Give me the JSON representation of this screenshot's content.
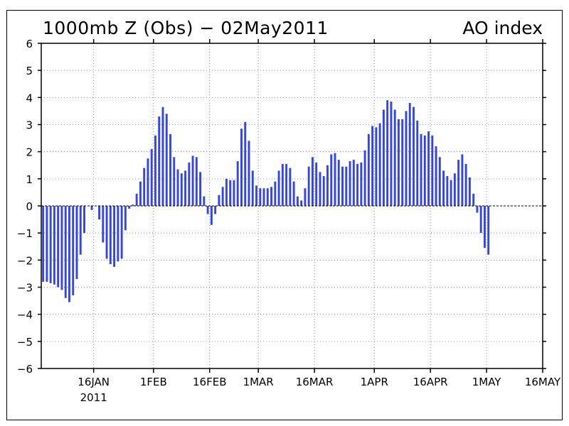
{
  "chart_data": {
    "type": "bar",
    "title": "1000mb Z (Obs) − 02May2011",
    "subtitle": "AO index",
    "xlabel": "",
    "ylabel": "",
    "ylim": [
      -6,
      6
    ],
    "yticks": [
      6,
      5,
      4,
      3,
      2,
      1,
      0,
      -1,
      -2,
      -3,
      -4,
      -5,
      -6
    ],
    "ytick_labels": [
      "6",
      "5",
      "4",
      "3",
      "2",
      "1",
      "0",
      "−1",
      "−2",
      "−3",
      "−4",
      "−5",
      "−6"
    ],
    "xlim": [
      "2011-01-02",
      "2011-05-16"
    ],
    "xticks": [
      {
        "date": "2011-01-16",
        "label": "16JAN"
      },
      {
        "date": "2011-02-01",
        "label": "1FEB"
      },
      {
        "date": "2011-02-16",
        "label": "16FEB"
      },
      {
        "date": "2011-03-01",
        "label": "1MAR"
      },
      {
        "date": "2011-03-16",
        "label": "16MAR"
      },
      {
        "date": "2011-04-01",
        "label": "1APR"
      },
      {
        "date": "2011-04-16",
        "label": "16APR"
      },
      {
        "date": "2011-05-01",
        "label": "1MAY"
      },
      {
        "date": "2011-05-16",
        "label": "16MAY"
      }
    ],
    "year_label": "2011",
    "grid": true,
    "colors": {
      "bar": "#3344ee",
      "axis": "#000000",
      "grid": "#999999"
    },
    "series": [
      {
        "x_start": "2011-01-02",
        "values": [
          -2.8,
          -2.8,
          -2.85,
          -2.9,
          -3.0,
          -3.1,
          -3.4,
          -3.55,
          -3.3,
          -2.7,
          -1.8,
          -1.0,
          0.0,
          -0.15,
          0.0,
          -0.5,
          -1.35,
          -1.95,
          -2.15,
          -2.25,
          -2.05,
          -1.95,
          -0.9,
          -0.1,
          0.05,
          0.45,
          0.9,
          1.4,
          1.75,
          2.1,
          2.6,
          3.3,
          3.65,
          3.4,
          2.65,
          1.8,
          1.35,
          1.2,
          1.3,
          1.6,
          1.85,
          1.8,
          1.25,
          0.35,
          -0.3,
          -0.7,
          -0.3,
          0.4,
          0.7,
          1.0,
          0.95,
          0.95,
          1.65,
          2.85,
          3.1,
          2.4,
          1.3,
          0.75,
          0.65,
          0.65,
          0.65,
          0.7,
          0.9,
          1.3,
          1.55,
          1.55,
          1.4,
          0.9,
          0.35,
          0.2,
          0.65,
          1.45,
          1.8,
          1.6,
          1.25,
          1.1,
          1.5,
          1.9,
          1.95,
          1.7,
          1.45,
          1.45,
          1.65,
          1.7,
          1.55,
          1.6,
          2.05,
          2.65,
          2.95,
          2.9,
          3.05,
          3.55,
          3.9,
          3.85,
          3.55,
          3.2,
          3.2,
          3.5,
          3.8,
          3.65,
          3.15,
          2.65,
          2.6,
          2.75,
          2.6,
          2.2,
          1.8,
          1.3,
          1.1,
          0.95,
          1.2,
          1.7,
          1.9,
          1.55,
          1.05,
          0.45,
          -0.25,
          -1.0,
          -1.55,
          -1.8
        ]
      }
    ]
  }
}
